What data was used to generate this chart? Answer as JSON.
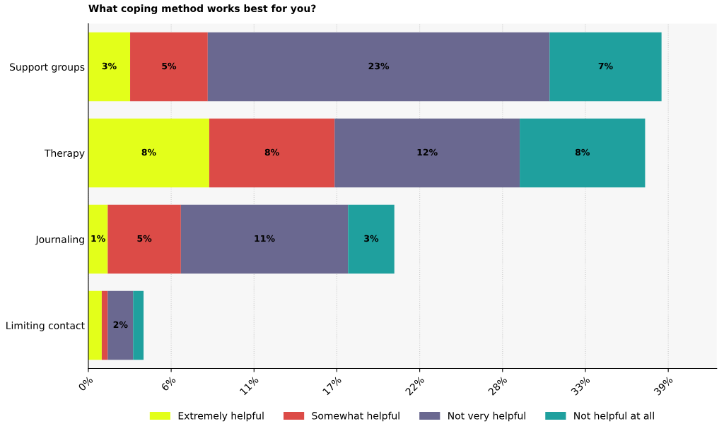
{
  "chart_data": {
    "type": "bar",
    "orientation": "horizontal",
    "stacked": true,
    "title": "What coping method works best for you?",
    "categories": [
      "Support groups",
      "Therapy",
      "Journaling",
      "Limiting contact"
    ],
    "series": [
      {
        "name": "Extremely helpful",
        "color": "#e3ff1a",
        "values": [
          2.8,
          8.1,
          1.3,
          0.9
        ],
        "value_labels": [
          "3%",
          "8%",
          "1%",
          null
        ]
      },
      {
        "name": "Somewhat helpful",
        "color": "#dc4b47",
        "values": [
          5.2,
          8.4,
          4.9,
          0.4
        ],
        "value_labels": [
          "5%",
          "8%",
          "5%",
          null
        ]
      },
      {
        "name": "Not very helpful",
        "color": "#6a6890",
        "values": [
          22.9,
          12.4,
          11.2,
          1.7
        ],
        "value_labels": [
          "23%",
          "12%",
          "11%",
          "2%"
        ]
      },
      {
        "name": "Not helpful at all",
        "color": "#1fa09e",
        "values": [
          7.5,
          8.4,
          3.1,
          0.7
        ],
        "value_labels": [
          "7%",
          "8%",
          "3%",
          null
        ]
      }
    ],
    "xlim": [
      0,
      42.1
    ],
    "xticks": [
      {
        "value": 0,
        "label": "0%"
      },
      {
        "value": 5.55,
        "label": "6%"
      },
      {
        "value": 11.1,
        "label": "11%"
      },
      {
        "value": 16.65,
        "label": "17%"
      },
      {
        "value": 22.2,
        "label": "22%"
      },
      {
        "value": 27.75,
        "label": "28%"
      },
      {
        "value": 33.3,
        "label": "33%"
      },
      {
        "value": 38.85,
        "label": "39%"
      }
    ],
    "grid": "x",
    "legend": "bottom"
  }
}
